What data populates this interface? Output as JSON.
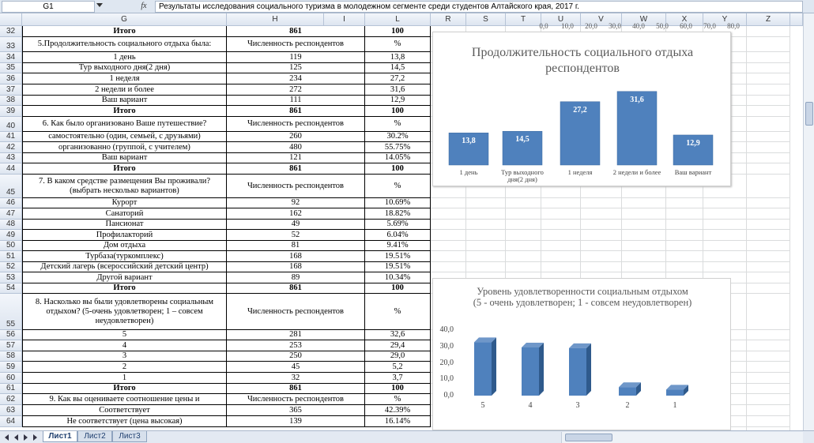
{
  "formula_bar": {
    "cell": "G1",
    "function_label": "fx",
    "content": "Результаты исследования социального туризма в молодежном сегменте среди студентов Алтайского края, 2017 г."
  },
  "columns": [
    "G",
    "H",
    "I",
    "L",
    "R",
    "S",
    "T",
    "U",
    "V",
    "W",
    "X",
    "Y",
    "Z"
  ],
  "rows": [
    {
      "number": 32,
      "cells": [
        "Итого",
        "861",
        "100"
      ],
      "bold": true
    },
    {
      "number": 33,
      "cells": [
        "5.Продолжительность социального отдыха была:",
        "Численность респондентов",
        "%"
      ]
    },
    {
      "number": 34,
      "cells": [
        "1 день",
        "119",
        "13,8"
      ]
    },
    {
      "number": 35,
      "cells": [
        "Тур выходного дня(2 дня)",
        "125",
        "14,5"
      ]
    },
    {
      "number": 36,
      "cells": [
        "1 неделя",
        "234",
        "27,2"
      ]
    },
    {
      "number": 37,
      "cells": [
        "2 недели и более",
        "272",
        "31,6"
      ]
    },
    {
      "number": 38,
      "cells": [
        "Ваш вариант",
        "111",
        "12,9"
      ]
    },
    {
      "number": 39,
      "cells": [
        "Итого",
        "861",
        "100"
      ],
      "bold": true
    },
    {
      "number": 40,
      "cells": [
        "6. Как было организовано Ваше путешествие?",
        "Численность респондентов",
        "%"
      ]
    },
    {
      "number": 41,
      "cells": [
        "самостоятельно (один, семьей, с друзьями)",
        "260",
        "30.2%"
      ]
    },
    {
      "number": 42,
      "cells": [
        "организованно (группой, с учителем)",
        "480",
        "55.75%"
      ]
    },
    {
      "number": 43,
      "cells": [
        "Ваш вариант",
        "121",
        "14.05%"
      ]
    },
    {
      "number": 44,
      "cells": [
        "Итого",
        "861",
        "100"
      ],
      "bold": true
    },
    {
      "number": 45,
      "cells": [
        "7. В каком средстве размещения Вы проживали?(выбрать несколько вариантов)",
        "Численность респондентов",
        "%"
      ]
    },
    {
      "number": 46,
      "cells": [
        "Курорт",
        "92",
        "10.69%"
      ]
    },
    {
      "number": 47,
      "cells": [
        "Санаторий",
        "162",
        "18.82%"
      ]
    },
    {
      "number": 48,
      "cells": [
        "Пансионат",
        "49",
        "5.69%"
      ]
    },
    {
      "number": 49,
      "cells": [
        "Профилакторий",
        "52",
        "6.04%"
      ]
    },
    {
      "number": 50,
      "cells": [
        "Дом отдыха",
        "81",
        "9.41%"
      ]
    },
    {
      "number": 51,
      "cells": [
        "Турбаза(туркомплекс)",
        "168",
        "19.51%"
      ]
    },
    {
      "number": 52,
      "cells": [
        "Детский лагерь (всероссийский детский центр)",
        "168",
        "19.51%"
      ]
    },
    {
      "number": 53,
      "cells": [
        "Другой вариант",
        "89",
        "10.34%"
      ]
    },
    {
      "number": 54,
      "cells": [
        "Итого",
        "861",
        "100"
      ],
      "bold": true
    },
    {
      "number": 55,
      "cells": [
        "8. Насколько вы были удовлетворены социальным отдыхом? (5-очень удовлетворен; 1 – совсем неудовлетворен)",
        "Численность респондентов",
        "%"
      ]
    },
    {
      "number": 56,
      "cells": [
        "5",
        "281",
        "32,6"
      ]
    },
    {
      "number": 57,
      "cells": [
        "4",
        "253",
        "29,4"
      ]
    },
    {
      "number": 58,
      "cells": [
        "3",
        "250",
        "29,0"
      ]
    },
    {
      "number": 59,
      "cells": [
        "2",
        "45",
        "5,2"
      ]
    },
    {
      "number": 60,
      "cells": [
        "1",
        "32",
        "3,7"
      ]
    },
    {
      "number": 61,
      "cells": [
        "Итого",
        "861",
        "100"
      ],
      "bold": true
    },
    {
      "number": 62,
      "cells": [
        "9. Как вы оцениваете соотношение цены и",
        "Численность респондентов",
        "%"
      ]
    },
    {
      "number": 63,
      "cells": [
        "Соответствует",
        "365",
        "42.39%"
      ]
    },
    {
      "number": 64,
      "cells": [
        "Не соответствует (цена высокая)",
        "139",
        "16.14%"
      ]
    }
  ],
  "chart_data": [
    {
      "type": "axis",
      "xlim": [
        0,
        80
      ],
      "xticks": [
        {
          "value": 0,
          "label": "0,0"
        },
        {
          "value": 10,
          "label": "10,0"
        },
        {
          "value": 20,
          "label": "20,0"
        },
        {
          "value": 30,
          "label": "30,0"
        },
        {
          "value": 40,
          "label": "40,0"
        },
        {
          "value": 50,
          "label": "50,0"
        },
        {
          "value": 60,
          "label": "60,0"
        },
        {
          "value": 70,
          "label": "70,0"
        },
        {
          "value": 80,
          "label": "80,0"
        }
      ]
    },
    {
      "type": "bar",
      "title": "Продолжительность социального отдыха респондентов",
      "categories": [
        "1 день",
        "Тур выходного дня(2 дня)",
        "1 неделя",
        "2 недели и более",
        "Ваш вариант"
      ],
      "values": [
        13.8,
        14.5,
        27.2,
        31.6,
        12.9
      ],
      "value_labels": [
        "13,8",
        "14,5",
        "27,2",
        "31,6",
        "12,9"
      ],
      "color": "#4f81bd"
    },
    {
      "type": "bar3d",
      "title": "Уровень удовлетворенности социальным отдыхом",
      "subtitle": "(5 - очень удовлетворен; 1 - совсем неудовлетворен)",
      "categories": [
        "5",
        "4",
        "3",
        "2",
        "1"
      ],
      "values": [
        32.6,
        29.4,
        29.0,
        5.2,
        3.7
      ],
      "color": "#4f81bd",
      "ylim": [
        0,
        40
      ],
      "yticks": [
        {
          "value": 0,
          "label": "0,0"
        },
        {
          "value": 10,
          "label": "10,0"
        },
        {
          "value": 20,
          "label": "20,0"
        },
        {
          "value": 30,
          "label": "30,0"
        },
        {
          "value": 40,
          "label": "40,0"
        }
      ]
    }
  ],
  "sheet_tabs": [
    "Лист1",
    "Лист2",
    "Лист3"
  ]
}
